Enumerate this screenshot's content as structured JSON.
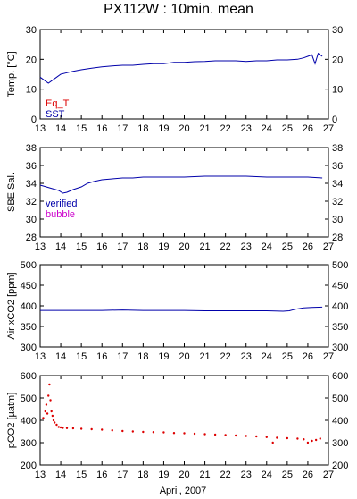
{
  "title": "PX112W : 10min. mean",
  "xlabel": "April, 2007",
  "colors": {
    "blue": "#0000aa",
    "red": "#dd0000",
    "magenta": "#cc00cc",
    "axis": "#000000"
  },
  "chart_data": [
    {
      "type": "line",
      "ylabel": "Temp. [°C]",
      "ylim": [
        0,
        30
      ],
      "yticks": [
        0,
        10,
        20,
        30
      ],
      "xlim": [
        13,
        27
      ],
      "xticks": [
        13,
        14,
        15,
        16,
        17,
        18,
        19,
        20,
        21,
        22,
        23,
        24,
        25,
        26,
        27
      ],
      "legend": [
        {
          "label": "Eq_T",
          "color": "#dd0000"
        },
        {
          "label": "SST",
          "color": "#0000aa"
        }
      ],
      "series": [
        {
          "name": "SST",
          "color": "#0000aa",
          "x": [
            13.0,
            13.2,
            13.4,
            13.6,
            13.8,
            14.0,
            14.3,
            14.6,
            15.0,
            15.5,
            16.0,
            16.5,
            17.0,
            17.5,
            18.0,
            18.5,
            19.0,
            19.5,
            20.0,
            20.5,
            21.0,
            21.5,
            22.0,
            22.5,
            23.0,
            23.5,
            24.0,
            24.5,
            25.0,
            25.5,
            25.8,
            26.0,
            26.2,
            26.35,
            26.5,
            26.7
          ],
          "y": [
            14,
            13,
            12,
            13,
            14,
            15,
            15.5,
            16,
            16.5,
            17,
            17.5,
            17.8,
            18,
            18,
            18.3,
            18.5,
            18.5,
            19,
            19,
            19.2,
            19.3,
            19.5,
            19.5,
            19.5,
            19.3,
            19.5,
            19.5,
            19.8,
            19.8,
            20,
            20.5,
            21,
            21.5,
            18.5,
            22,
            21
          ]
        }
      ]
    },
    {
      "type": "line",
      "ylabel": "SBE Sal.",
      "ylim": [
        28,
        38
      ],
      "yticks": [
        28,
        30,
        32,
        34,
        36,
        38
      ],
      "xlim": [
        13,
        27
      ],
      "xticks": [
        13,
        14,
        15,
        16,
        17,
        18,
        19,
        20,
        21,
        22,
        23,
        24,
        25,
        26,
        27
      ],
      "legend": [
        {
          "label": "verified",
          "color": "#0000aa"
        },
        {
          "label": "bubble",
          "color": "#cc00cc"
        }
      ],
      "series": [
        {
          "name": "verified",
          "color": "#0000aa",
          "x": [
            13.0,
            13.3,
            13.6,
            13.9,
            14.1,
            14.3,
            14.6,
            15.0,
            15.3,
            15.6,
            16.0,
            16.5,
            17.0,
            17.5,
            18.0,
            19.0,
            20.0,
            21.0,
            22.0,
            23.0,
            24.0,
            25.0,
            26.0,
            26.7
          ],
          "y": [
            33.8,
            33.6,
            33.4,
            33.2,
            32.9,
            33.0,
            33.3,
            33.6,
            34.0,
            34.2,
            34.4,
            34.5,
            34.6,
            34.6,
            34.7,
            34.7,
            34.7,
            34.8,
            34.8,
            34.8,
            34.7,
            34.7,
            34.7,
            34.6
          ]
        }
      ]
    },
    {
      "type": "line",
      "ylabel": "Air xCO2 [ppm]",
      "ylim": [
        300,
        500
      ],
      "yticks": [
        300,
        350,
        400,
        450,
        500
      ],
      "xlim": [
        13,
        27
      ],
      "xticks": [
        13,
        14,
        15,
        16,
        17,
        18,
        19,
        20,
        21,
        22,
        23,
        24,
        25,
        26,
        27
      ],
      "series": [
        {
          "name": "",
          "color": "#0000aa",
          "x": [
            13.0,
            14.0,
            15.0,
            16.0,
            17.0,
            18.0,
            19.0,
            20.0,
            21.0,
            22.0,
            23.0,
            24.0,
            24.8,
            25.1,
            25.4,
            25.8,
            26.2,
            26.7
          ],
          "y": [
            389,
            389,
            389,
            389,
            390,
            389,
            389,
            389,
            388,
            388,
            388,
            388,
            387,
            388,
            392,
            395,
            396,
            397
          ]
        }
      ]
    },
    {
      "type": "scatter",
      "ylabel": "pCO2 [µatm]",
      "ylim": [
        200,
        600
      ],
      "yticks": [
        200,
        300,
        400,
        500,
        600
      ],
      "xlim": [
        13,
        27
      ],
      "xticks": [
        13,
        14,
        15,
        16,
        17,
        18,
        19,
        20,
        21,
        22,
        23,
        24,
        25,
        26,
        27
      ],
      "series": [
        {
          "name": "",
          "color": "#dd0000",
          "x": [
            13.15,
            13.25,
            13.3,
            13.35,
            13.4,
            13.45,
            13.5,
            13.55,
            13.6,
            13.65,
            13.7,
            13.8,
            13.9,
            14.0,
            14.1,
            14.3,
            14.6,
            15.0,
            15.5,
            16.0,
            16.5,
            17.0,
            17.5,
            18.0,
            18.5,
            19.0,
            19.5,
            20.0,
            20.5,
            21.0,
            21.5,
            22.0,
            22.5,
            23.0,
            23.5,
            24.0,
            24.3,
            24.5,
            25.0,
            25.5,
            25.8,
            26.0,
            26.2,
            26.4,
            26.6
          ],
          "y": [
            410,
            440,
            470,
            430,
            510,
            560,
            490,
            440,
            420,
            400,
            390,
            380,
            370,
            368,
            366,
            365,
            364,
            362,
            360,
            358,
            355,
            352,
            350,
            348,
            347,
            346,
            343,
            342,
            340,
            338,
            336,
            334,
            332,
            330,
            328,
            325,
            300,
            322,
            320,
            318,
            315,
            300,
            308,
            312,
            318
          ]
        }
      ]
    }
  ]
}
